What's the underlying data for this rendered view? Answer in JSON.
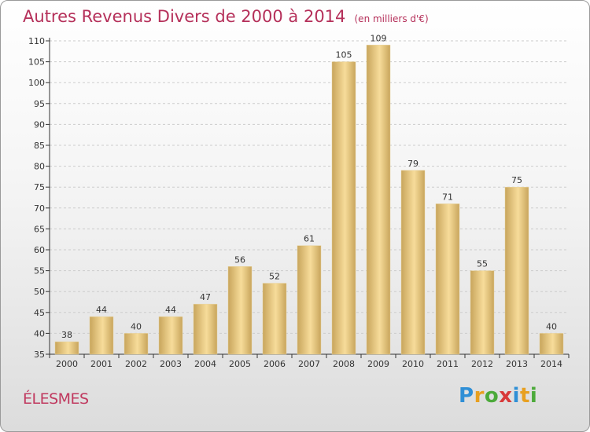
{
  "title": "Autres Revenus Divers de 2000 à 2014",
  "unit": "(en milliers d'€)",
  "commune": "ÉLESMES",
  "logo": {
    "letters": [
      {
        "ch": "P",
        "color": "#2f8fd6"
      },
      {
        "ch": "r",
        "color": "#e8a020"
      },
      {
        "ch": "o",
        "color": "#4caa3a"
      },
      {
        "ch": "x",
        "color": "#d83a3a"
      },
      {
        "ch": "i",
        "color": "#2f8fd6"
      },
      {
        "ch": "t",
        "color": "#e8a020"
      },
      {
        "ch": "i",
        "color": "#4caa3a"
      }
    ]
  },
  "colors": {
    "title": "#b5305a",
    "bar_light": "#f7dc9a",
    "bar_dark": "#c8a55c",
    "grid": "#cccccc",
    "axis": "#333333"
  },
  "chart_data": {
    "type": "bar",
    "title": "Autres Revenus Divers de 2000 à 2014",
    "subtitle": "(en milliers d'€)",
    "categories": [
      "2000",
      "2001",
      "2002",
      "2003",
      "2004",
      "2005",
      "2006",
      "2007",
      "2008",
      "2009",
      "2010",
      "2011",
      "2012",
      "2013",
      "2014"
    ],
    "values": [
      38,
      44,
      40,
      44,
      47,
      56,
      52,
      61,
      105,
      109,
      79,
      71,
      55,
      75,
      40
    ],
    "ylim": [
      35,
      110
    ],
    "yticks": [
      35,
      40,
      45,
      50,
      55,
      60,
      65,
      70,
      75,
      80,
      85,
      90,
      95,
      100,
      105,
      110
    ],
    "grid": true,
    "data_labels": true
  }
}
